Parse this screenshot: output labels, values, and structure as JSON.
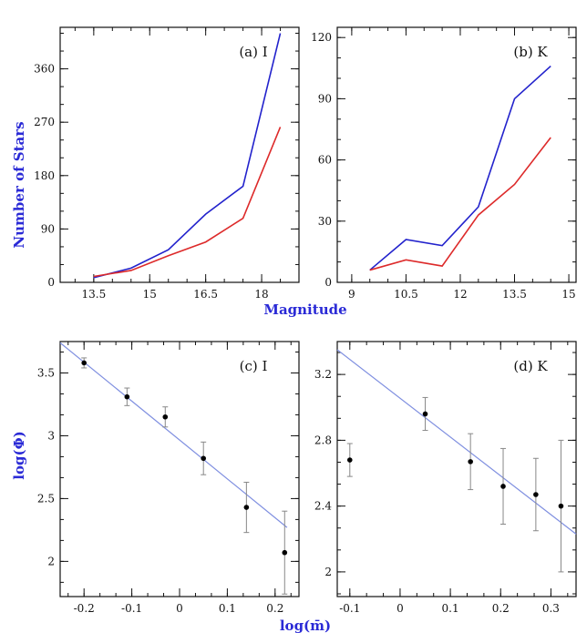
{
  "figure": {
    "ylabel_top": "Number of Stars",
    "xlabel_top": "Magnitude",
    "ylabel_bottom": "log(Φ)",
    "xlabel_bottom": "log(m̄)"
  },
  "colors": {
    "blue": "#2222cc",
    "red": "#dd2a2a",
    "fit": "#7f8fe0",
    "axis_title": "#2a2ad6"
  },
  "chart_data": [
    {
      "id": "a",
      "type": "line",
      "panel_label": "(a) I",
      "xlim": [
        12.6,
        19.0
      ],
      "ylim": [
        0,
        430
      ],
      "xticks": [
        13.5,
        15,
        16.5,
        18
      ],
      "yticks": [
        0,
        90,
        180,
        270,
        360
      ],
      "series": [
        {
          "color": "blue",
          "x": [
            13.5,
            14.5,
            15.5,
            16.5,
            17.5,
            18.5
          ],
          "y": [
            8,
            24,
            55,
            115,
            162,
            420
          ]
        },
        {
          "color": "red",
          "x": [
            13.5,
            14.5,
            15.5,
            16.5,
            17.5,
            18.5
          ],
          "y": [
            10,
            20,
            45,
            68,
            108,
            262
          ]
        }
      ]
    },
    {
      "id": "b",
      "type": "line",
      "panel_label": "(b) K",
      "xlim": [
        8.6,
        15.2
      ],
      "ylim": [
        0,
        125
      ],
      "xticks": [
        9,
        10.5,
        12,
        13.5,
        15
      ],
      "yticks": [
        0,
        30,
        60,
        90,
        120
      ],
      "series": [
        {
          "color": "blue",
          "x": [
            9.5,
            10.5,
            11.5,
            12.5,
            13.5,
            14.5
          ],
          "y": [
            6,
            21,
            18,
            37,
            90,
            106
          ]
        },
        {
          "color": "red",
          "x": [
            9.5,
            10.5,
            11.5,
            12.5,
            13.5,
            14.5
          ],
          "y": [
            6,
            11,
            8,
            33,
            48,
            71
          ]
        }
      ]
    },
    {
      "id": "c",
      "type": "scatter",
      "panel_label": "(c) I",
      "xlim": [
        -0.25,
        0.25
      ],
      "ylim": [
        1.72,
        3.75
      ],
      "xticks": [
        -0.2,
        -0.1,
        0,
        0.1,
        0.2
      ],
      "xtick_labels": [
        "-0.2",
        "-0.1",
        "0",
        "0.1",
        "0.2"
      ],
      "yticks": [
        2,
        2.5,
        3,
        3.5
      ],
      "ytick_labels": [
        "2",
        "2.5",
        "3",
        "3.5"
      ],
      "points": [
        {
          "x": -0.2,
          "y": 3.58,
          "err": 0.04
        },
        {
          "x": -0.11,
          "y": 3.31,
          "err": 0.07
        },
        {
          "x": -0.03,
          "y": 3.15,
          "err": 0.08
        },
        {
          "x": 0.05,
          "y": 2.82,
          "err": 0.13
        },
        {
          "x": 0.14,
          "y": 2.43,
          "err": 0.2
        },
        {
          "x": 0.22,
          "y": 2.07,
          "err": 0.33
        }
      ],
      "fit": {
        "x": [
          -0.25,
          0.225
        ],
        "y": [
          3.74,
          2.27
        ]
      }
    },
    {
      "id": "d",
      "type": "scatter",
      "panel_label": "(d) K",
      "xlim": [
        -0.125,
        0.35
      ],
      "ylim": [
        1.85,
        3.4
      ],
      "xticks": [
        -0.1,
        0,
        0.1,
        0.2,
        0.3
      ],
      "xtick_labels": [
        "-0.1",
        "0",
        "0.1",
        "0.2",
        "0.3"
      ],
      "yticks": [
        2,
        2.4,
        2.8,
        3.2
      ],
      "ytick_labels": [
        "2",
        "2.4",
        "2.8",
        "3.2"
      ],
      "points": [
        {
          "x": -0.1,
          "y": 2.68,
          "err": 0.1
        },
        {
          "x": 0.05,
          "y": 2.96,
          "err": 0.1
        },
        {
          "x": 0.14,
          "y": 2.67,
          "err": 0.17
        },
        {
          "x": 0.205,
          "y": 2.52,
          "err": 0.23
        },
        {
          "x": 0.27,
          "y": 2.47,
          "err": 0.22
        },
        {
          "x": 0.32,
          "y": 2.4,
          "err": 0.4
        }
      ],
      "fit": {
        "x": [
          -0.125,
          0.35
        ],
        "y": [
          3.35,
          2.23
        ]
      }
    }
  ]
}
